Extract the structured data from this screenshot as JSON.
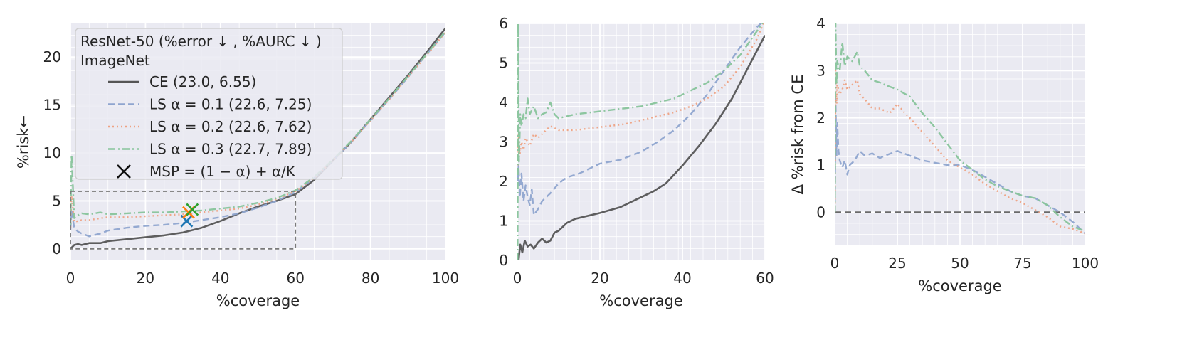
{
  "chart_data": [
    {
      "type": "line",
      "xlabel": "%coverage",
      "ylabel": "%risk←",
      "xlim": [
        0,
        100
      ],
      "ylim": [
        -1.2,
        23.5
      ],
      "xticks": [
        0,
        20,
        40,
        60,
        80,
        100
      ],
      "yticks": [
        0,
        5,
        10,
        15,
        20
      ],
      "grid": true,
      "legend": {
        "placement": "upper-left",
        "title_lines": [
          "ResNet-50 (%error ↓ , %AURC ↓ )",
          "ImageNet"
        ],
        "entries": [
          {
            "label": "CE (23.0, 6.55)",
            "style": "solid",
            "color": "#555555"
          },
          {
            "label": "LS α = 0.1 (22.6, 7.25)",
            "style": "dashed",
            "color": "#8fa5cf"
          },
          {
            "label": "LS α = 0.2 (22.6, 7.62)",
            "style": "dotted",
            "color": "#eea283"
          },
          {
            "label": "LS α = 0.3 (22.7, 7.89)",
            "style": "dashdot",
            "color": "#88c49b"
          },
          {
            "label": "MSP = (1 − α) + α/K",
            "style": "marker-x",
            "color": "#111111"
          }
        ]
      },
      "series": [
        {
          "name": "CE",
          "color": "#555555",
          "style": "solid",
          "x": [
            0,
            0.5,
            1,
            2,
            3,
            5,
            8,
            10,
            15,
            20,
            25,
            30,
            35,
            40,
            45,
            50,
            55,
            60,
            65,
            70,
            75,
            80,
            85,
            90,
            95,
            100
          ],
          "y": [
            0,
            0.2,
            0.4,
            0.5,
            0.4,
            0.6,
            0.6,
            0.8,
            1.0,
            1.2,
            1.4,
            1.7,
            2.2,
            2.9,
            3.7,
            4.4,
            5.0,
            5.7,
            7.2,
            9.2,
            11.2,
            13.5,
            15.8,
            18.1,
            20.5,
            23.0
          ]
        },
        {
          "name": "LS α = 0.1",
          "color": "#8fa5cf",
          "style": "dashed",
          "x": [
            0,
            0.3,
            1,
            2,
            3,
            5,
            8,
            10,
            15,
            20,
            25,
            30,
            35,
            40,
            45,
            50,
            55,
            60,
            65,
            70,
            75,
            80,
            85,
            90,
            95,
            100
          ],
          "y": [
            2.0,
            4.0,
            2.2,
            1.8,
            1.6,
            1.3,
            1.6,
            1.9,
            2.2,
            2.4,
            2.5,
            2.7,
            3.0,
            3.3,
            3.7,
            4.3,
            5.0,
            5.9,
            7.4,
            9.2,
            11.2,
            13.4,
            15.6,
            17.9,
            20.3,
            22.6
          ]
        },
        {
          "name": "LS α = 0.2",
          "color": "#eea283",
          "style": "dotted",
          "x": [
            0,
            0.3,
            1,
            2,
            3,
            5,
            8,
            10,
            15,
            20,
            25,
            30,
            35,
            40,
            45,
            50,
            55,
            60,
            65,
            70,
            75,
            80,
            85,
            90,
            95,
            100
          ],
          "y": [
            2.2,
            5.5,
            2.8,
            2.9,
            3.0,
            3.0,
            3.2,
            3.3,
            3.3,
            3.4,
            3.5,
            3.6,
            3.8,
            4.0,
            4.2,
            4.6,
            5.2,
            6.0,
            7.4,
            9.2,
            11.2,
            13.4,
            15.6,
            17.9,
            20.2,
            22.6
          ]
        },
        {
          "name": "LS α = 0.3",
          "color": "#88c49b",
          "style": "dashdot",
          "x": [
            0,
            0.3,
            1,
            2,
            3,
            5,
            8,
            10,
            15,
            20,
            25,
            30,
            35,
            40,
            45,
            50,
            55,
            60,
            65,
            70,
            75,
            80,
            85,
            90,
            95,
            100
          ],
          "y": [
            2.5,
            9.8,
            3.2,
            3.5,
            3.7,
            3.6,
            3.8,
            3.6,
            3.7,
            3.8,
            3.8,
            3.9,
            4.0,
            4.2,
            4.4,
            4.8,
            5.3,
            6.1,
            7.5,
            9.3,
            11.3,
            13.5,
            15.7,
            18.0,
            20.3,
            22.7
          ]
        }
      ],
      "markers": [
        {
          "x": 31.0,
          "y": 2.9,
          "color": "#1f77b4"
        },
        {
          "x": 31.5,
          "y": 3.8,
          "color": "#ff7f0e"
        },
        {
          "x": 32.5,
          "y": 4.1,
          "color": "#2ca02c"
        }
      ],
      "inset_box": {
        "x0": 0,
        "x1": 60,
        "y0": 0,
        "y1": 6
      }
    },
    {
      "type": "line",
      "xlabel": "%coverage",
      "ylabel": "",
      "xlim": [
        0,
        60
      ],
      "ylim": [
        0,
        6
      ],
      "xticks": [
        0,
        20,
        40,
        60
      ],
      "yticks": [
        0,
        1,
        2,
        3,
        4,
        5,
        6
      ],
      "grid": true,
      "series": [
        {
          "name": "CE",
          "color": "#555555",
          "style": "solid",
          "x": [
            0.3,
            0.7,
            1.2,
            1.8,
            2.5,
            3.2,
            4,
            5,
            6,
            7,
            8,
            9,
            10,
            12,
            14,
            16,
            18,
            20,
            25,
            30,
            33,
            36,
            40,
            44,
            48,
            52,
            56,
            60
          ],
          "y": [
            0,
            0.4,
            0.2,
            0.5,
            0.35,
            0.4,
            0.3,
            0.45,
            0.55,
            0.45,
            0.5,
            0.7,
            0.75,
            0.95,
            1.05,
            1.1,
            1.15,
            1.2,
            1.35,
            1.6,
            1.75,
            1.95,
            2.4,
            2.9,
            3.45,
            4.1,
            4.9,
            5.7
          ]
        },
        {
          "name": "LS α = 0.1",
          "color": "#8fa5cf",
          "style": "dashed",
          "x": [
            0.1,
            0.3,
            0.6,
            1,
            1.5,
            2,
            2.5,
            3,
            3.5,
            4,
            5,
            6,
            8,
            10,
            12,
            15,
            18,
            20,
            25,
            30,
            34,
            38,
            42,
            46,
            50,
            54,
            58,
            60
          ],
          "y": [
            2.0,
            2.4,
            1.6,
            2.2,
            1.5,
            1.9,
            1.6,
            1.4,
            1.8,
            1.15,
            1.3,
            1.5,
            1.7,
            1.95,
            2.1,
            2.2,
            2.35,
            2.45,
            2.55,
            2.75,
            3.0,
            3.3,
            3.7,
            4.2,
            4.8,
            5.4,
            5.9,
            6.1
          ]
        },
        {
          "name": "LS α = 0.2",
          "color": "#eea283",
          "style": "dotted",
          "x": [
            0.1,
            0.3,
            0.6,
            1,
            1.5,
            2,
            3,
            4,
            5,
            6,
            8,
            10,
            14,
            18,
            22,
            26,
            30,
            34,
            38,
            42,
            46,
            50,
            54,
            58,
            60
          ],
          "y": [
            2.3,
            3.2,
            2.7,
            3.0,
            2.8,
            3.1,
            2.9,
            3.2,
            3.1,
            3.2,
            3.4,
            3.3,
            3.3,
            3.35,
            3.4,
            3.45,
            3.55,
            3.65,
            3.75,
            3.9,
            4.1,
            4.4,
            4.9,
            5.6,
            6.1
          ]
        },
        {
          "name": "LS α = 0.3",
          "color": "#88c49b",
          "style": "dashdot",
          "x": [
            0.05,
            0.2,
            0.4,
            0.7,
            1,
            1.5,
            2,
            2.5,
            3,
            4,
            5,
            6,
            7,
            8,
            9,
            10,
            14,
            18,
            22,
            26,
            30,
            34,
            38,
            42,
            46,
            50,
            54,
            58,
            60
          ],
          "y": [
            0,
            6.0,
            2.5,
            3.7,
            3.4,
            3.7,
            3.6,
            4.1,
            3.7,
            3.9,
            3.6,
            3.7,
            3.75,
            4.0,
            3.7,
            3.6,
            3.7,
            3.75,
            3.8,
            3.85,
            3.9,
            4.0,
            4.1,
            4.3,
            4.5,
            4.8,
            5.2,
            5.8,
            6.1
          ]
        }
      ]
    },
    {
      "type": "line",
      "xlabel": "%coverage",
      "ylabel": "Δ %risk from CE",
      "xlim": [
        0,
        100
      ],
      "ylim": [
        -0.7,
        4
      ],
      "xticks": [
        0,
        25,
        50,
        75,
        100
      ],
      "yticks": [
        0,
        1,
        2,
        3,
        4
      ],
      "grid": true,
      "reference_line": {
        "y": 0,
        "color": "#6a6a6a",
        "style": "dashed"
      },
      "series": [
        {
          "name": "LS α = 0.1",
          "color": "#8fa5cf",
          "style": "dashed",
          "x": [
            0.05,
            0.3,
            0.7,
            1,
            1.5,
            2,
            3,
            4,
            5,
            6,
            8,
            10,
            12,
            15,
            18,
            20,
            25,
            30,
            35,
            40,
            45,
            50,
            55,
            60,
            65,
            70,
            75,
            80,
            85,
            90,
            95,
            100
          ],
          "y": [
            0,
            2.4,
            1.2,
            1.9,
            1.3,
            1.1,
            0.95,
            1.1,
            0.8,
            1.0,
            1.1,
            1.3,
            1.2,
            1.25,
            1.15,
            1.2,
            1.3,
            1.2,
            1.1,
            1.05,
            1.0,
            1.0,
            0.9,
            0.75,
            0.6,
            0.45,
            0.35,
            0.3,
            0.15,
            0.0,
            -0.2,
            -0.45
          ]
        },
        {
          "name": "LS α = 0.2",
          "color": "#eea283",
          "style": "dotted",
          "x": [
            0.05,
            0.3,
            0.7,
            1,
            2,
            3,
            4,
            5,
            7,
            9,
            10,
            12,
            15,
            18,
            20,
            22,
            25,
            28,
            30,
            35,
            40,
            45,
            50,
            55,
            60,
            65,
            70,
            75,
            80,
            85,
            90,
            95,
            100
          ],
          "y": [
            0,
            3.0,
            2.3,
            2.7,
            2.5,
            2.6,
            2.8,
            2.6,
            2.7,
            2.8,
            2.5,
            2.4,
            2.2,
            2.2,
            2.15,
            2.1,
            2.3,
            2.1,
            2.0,
            1.7,
            1.4,
            1.1,
            0.95,
            0.8,
            0.6,
            0.45,
            0.3,
            0.2,
            0.05,
            -0.1,
            -0.3,
            -0.35,
            -0.45
          ]
        },
        {
          "name": "LS α = 0.3",
          "color": "#88c49b",
          "style": "dashdot",
          "x": [
            0.05,
            0.3,
            0.7,
            1,
            2,
            3,
            4,
            5,
            7,
            9,
            10,
            12,
            15,
            18,
            20,
            25,
            30,
            35,
            40,
            45,
            50,
            55,
            60,
            65,
            70,
            75,
            80,
            85,
            90,
            95,
            100
          ],
          "y": [
            0,
            4.0,
            2.7,
            3.2,
            3.0,
            3.6,
            3.1,
            3.3,
            3.2,
            3.4,
            3.1,
            3.0,
            2.8,
            2.75,
            2.7,
            2.6,
            2.45,
            2.1,
            1.8,
            1.45,
            1.1,
            0.9,
            0.7,
            0.55,
            0.45,
            0.35,
            0.3,
            0.15,
            -0.1,
            -0.3,
            -0.4
          ]
        }
      ]
    }
  ]
}
